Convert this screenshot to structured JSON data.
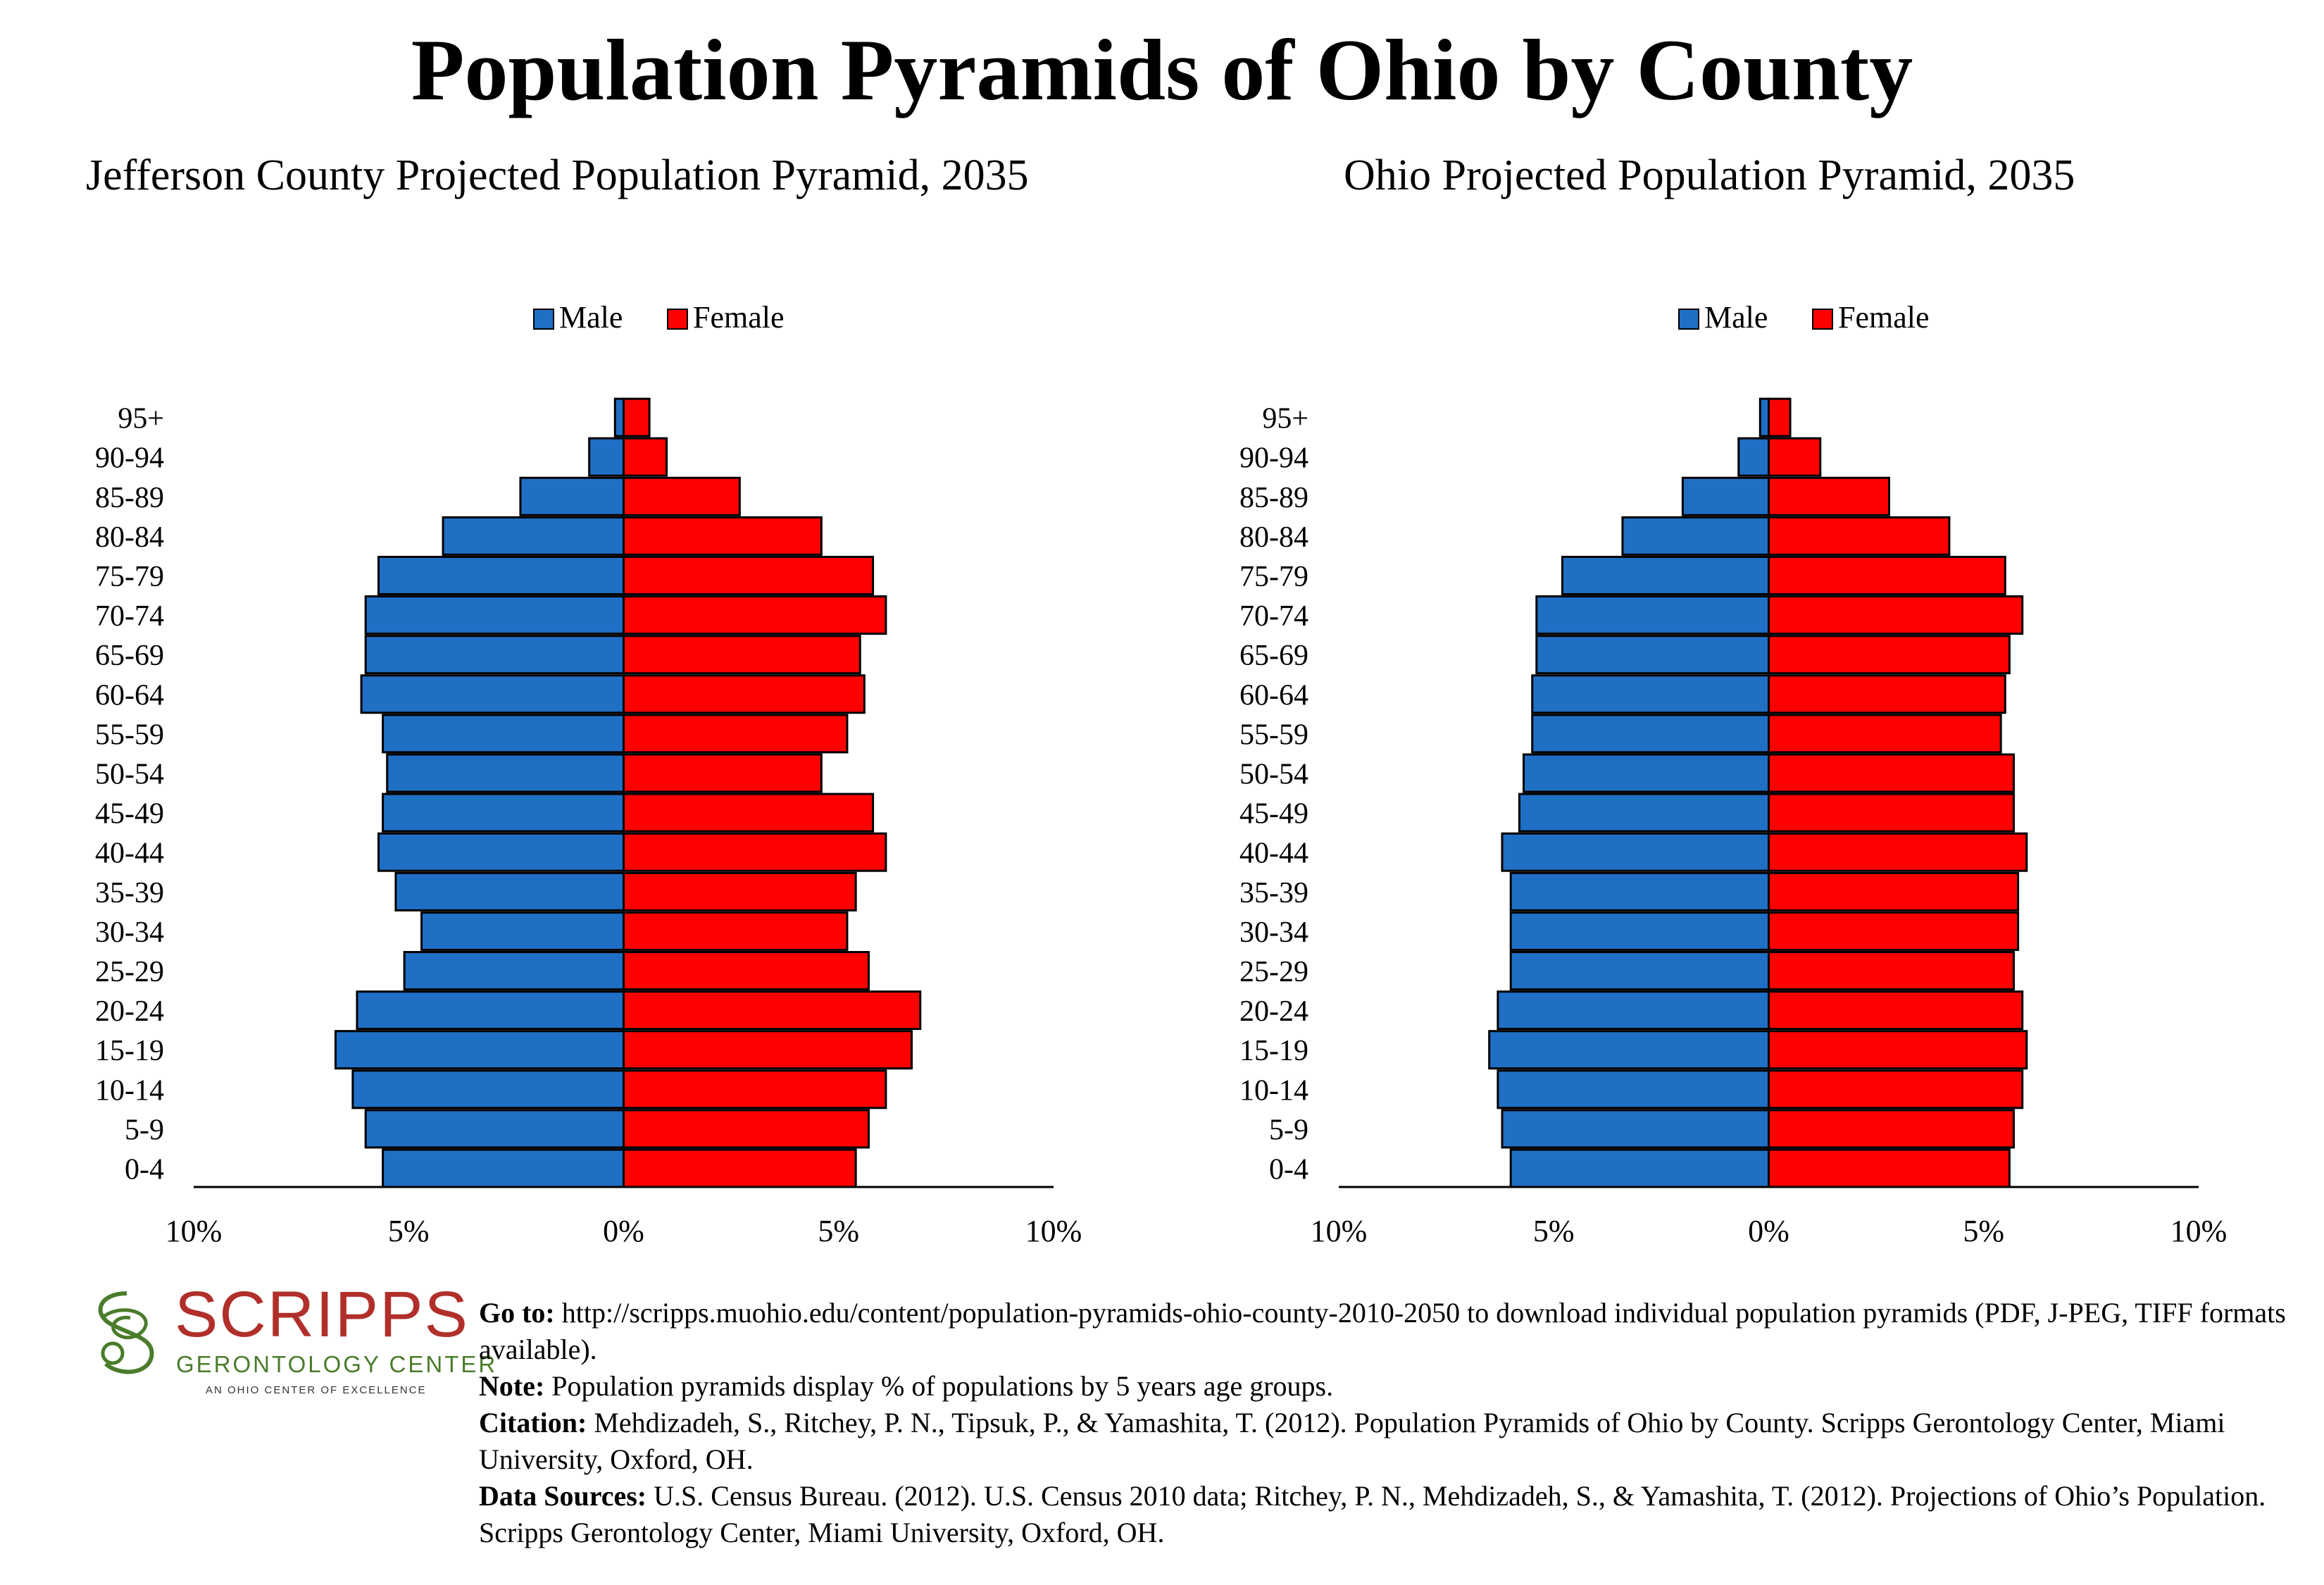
{
  "title": "Population Pyramids of Ohio by County",
  "colors": {
    "male": "#1f6fc5",
    "female": "#ff0000"
  },
  "chart_data": [
    {
      "type": "bar",
      "title": "Jefferson County Projected Population Pyramid, 2035",
      "legend": [
        "Male",
        "Female"
      ],
      "legend_placement": "top",
      "categories": [
        "0-4",
        "5-9",
        "10-14",
        "15-19",
        "20-24",
        "25-29",
        "30-34",
        "35-39",
        "40-44",
        "45-49",
        "50-54",
        "55-59",
        "60-64",
        "65-69",
        "70-74",
        "75-79",
        "80-84",
        "85-89",
        "90-94",
        "95+"
      ],
      "series": [
        {
          "name": "Male",
          "values": [
            5.6,
            6.0,
            6.3,
            6.7,
            6.2,
            5.1,
            4.7,
            5.3,
            5.7,
            5.6,
            5.5,
            5.6,
            6.1,
            6.0,
            6.0,
            5.7,
            4.2,
            2.4,
            0.8,
            0.2
          ]
        },
        {
          "name": "Female",
          "values": [
            5.4,
            5.7,
            6.1,
            6.7,
            6.9,
            5.7,
            5.2,
            5.4,
            6.1,
            5.8,
            4.6,
            5.2,
            5.6,
            5.5,
            6.1,
            5.8,
            4.6,
            2.7,
            1.0,
            0.6
          ]
        }
      ],
      "xlim": [
        -10,
        10
      ],
      "xticks": [
        "10%",
        "5%",
        "0%",
        "5%",
        "10%"
      ]
    },
    {
      "type": "bar",
      "title": "Ohio Projected Population Pyramid, 2035",
      "legend": [
        "Male",
        "Female"
      ],
      "legend_placement": "top",
      "categories": [
        "0-4",
        "5-9",
        "10-14",
        "15-19",
        "20-24",
        "25-29",
        "30-34",
        "35-39",
        "40-44",
        "45-49",
        "50-54",
        "55-59",
        "60-64",
        "65-69",
        "70-74",
        "75-79",
        "80-84",
        "85-89",
        "90-94",
        "95+"
      ],
      "series": [
        {
          "name": "Male",
          "values": [
            6.0,
            6.2,
            6.3,
            6.5,
            6.3,
            6.0,
            6.0,
            6.0,
            6.2,
            5.8,
            5.7,
            5.5,
            5.5,
            5.4,
            5.4,
            4.8,
            3.4,
            2.0,
            0.7,
            0.2
          ]
        },
        {
          "name": "Female",
          "values": [
            5.6,
            5.7,
            5.9,
            6.0,
            5.9,
            5.7,
            5.8,
            5.8,
            6.0,
            5.7,
            5.7,
            5.4,
            5.5,
            5.6,
            5.9,
            5.5,
            4.2,
            2.8,
            1.2,
            0.5
          ]
        }
      ],
      "xlim": [
        -10,
        10
      ],
      "xticks": [
        "10%",
        "5%",
        "0%",
        "5%",
        "10%"
      ]
    }
  ],
  "logo": {
    "word": "SCRIPPS",
    "subtitle": "GERONTOLOGY CENTER",
    "tagline": "AN OHIO CENTER OF EXCELLENCE"
  },
  "footer": {
    "goto_label": "Go to:",
    "goto_text": "http://scripps.muohio.edu/content/population-pyramids-ohio-county-2010-2050 to download individual population pyramids (PDF, J-PEG, TIFF formats available).",
    "note_label": "Note:",
    "note_text": "Population pyramids display % of populations by 5 years age groups.",
    "citation_label": "Citation:",
    "citation_text": "Mehdizadeh, S., Ritchey, P. N., Tipsuk, P., & Yamashita, T. (2012). Population Pyramids of Ohio by County. Scripps Gerontology Center, Miami University, Oxford, OH.",
    "sources_label": "Data Sources:",
    "sources_text": "U.S. Census Bureau. (2012). U.S. Census 2010 data; Ritchey, P. N., Mehdizadeh, S., & Yamashita, T. (2012). Projections of Ohio’s Population. Scripps Gerontology Center, Miami University, Oxford, OH."
  }
}
